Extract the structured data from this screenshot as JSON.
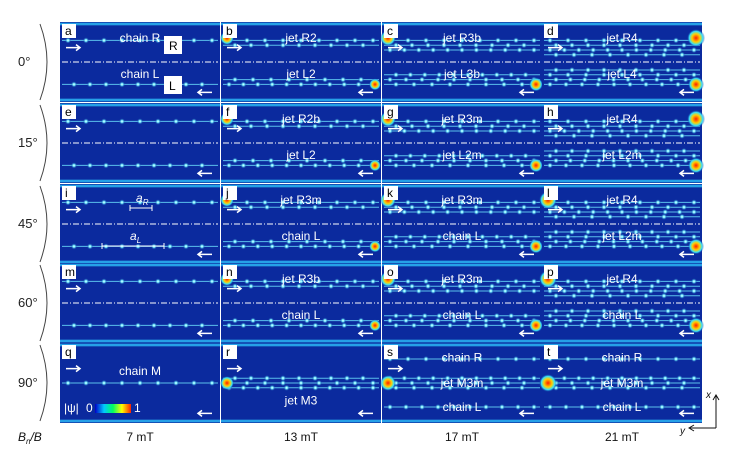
{
  "rows": [
    {
      "angle": "0°",
      "panels": [
        {
          "letter": "a",
          "labels": [
            "chain R",
            "chain L"
          ],
          "boxes": [
            "R",
            "L"
          ],
          "jet": 0
        },
        {
          "letter": "b",
          "labels": [
            "jet R2",
            "jet L2"
          ],
          "jet": 1
        },
        {
          "letter": "c",
          "labels": [
            "jet R3b",
            "jet L3b"
          ],
          "jet": 2
        },
        {
          "letter": "d",
          "labels": [
            "jet R4",
            "jet L4"
          ],
          "jet": 3
        }
      ]
    },
    {
      "angle": "15°",
      "panels": [
        {
          "letter": "e",
          "labels": [
            "",
            ""
          ],
          "jet": 0
        },
        {
          "letter": "f",
          "labels": [
            "jet R2b",
            "jet L2"
          ],
          "jet": 1
        },
        {
          "letter": "g",
          "labels": [
            "jet R3m",
            "jet L2m"
          ],
          "jet": 2
        },
        {
          "letter": "h",
          "labels": [
            "jet R4",
            "jet L2m"
          ],
          "jet": 3
        }
      ]
    },
    {
      "angle": "45°",
      "panels": [
        {
          "letter": "i",
          "labels": [
            "",
            ""
          ],
          "marks": [
            "a",
            "R",
            "a",
            "L"
          ],
          "jet": 0
        },
        {
          "letter": "j",
          "labels": [
            "jet R3m",
            "chain L"
          ],
          "jet": 1
        },
        {
          "letter": "k",
          "labels": [
            "jet R3m",
            "chain L"
          ],
          "jet": 2
        },
        {
          "letter": "l",
          "labels": [
            "jet R4",
            "jet L2m"
          ],
          "jet": 3
        }
      ]
    },
    {
      "angle": "60°",
      "panels": [
        {
          "letter": "m",
          "labels": [
            "",
            ""
          ],
          "jet": 0
        },
        {
          "letter": "n",
          "labels": [
            "jet R3b",
            "chain L"
          ],
          "jet": 1
        },
        {
          "letter": "o",
          "labels": [
            "jet R3m",
            "chain L"
          ],
          "jet": 2
        },
        {
          "letter": "p",
          "labels": [
            "jet R4",
            "chain L"
          ],
          "jet": 3
        }
      ]
    },
    {
      "angle": "90°",
      "panels": [
        {
          "letter": "q",
          "labels": [
            "chain M",
            ""
          ],
          "jet": 0
        },
        {
          "letter": "r",
          "labels": [
            "",
            "jet M3"
          ],
          "jet": 1
        },
        {
          "letter": "s",
          "labels": [
            "chain R",
            "jet M3m",
            "chain L"
          ],
          "jet": 2
        },
        {
          "letter": "t",
          "labels": [
            "chain R",
            "jet M3m",
            "chain L"
          ],
          "jet": 3
        }
      ]
    }
  ],
  "columns": [
    "7 mT",
    "13 mT",
    "17 mT",
    "21 mT"
  ],
  "row_axis_label": "B_n/B",
  "colorbar": {
    "label": "|ψ|",
    "min": "0",
    "max": "1",
    "colors": [
      "#0000c8",
      "#00c8ff",
      "#00ff60",
      "#ffff00",
      "#ff2000"
    ]
  },
  "axes": {
    "x": "x",
    "y": "y"
  },
  "colors": {
    "panel_bg": "#0b2a9e",
    "vortex": "#ffffff",
    "glow": "#39d7ff",
    "hot": "#ff3300"
  }
}
